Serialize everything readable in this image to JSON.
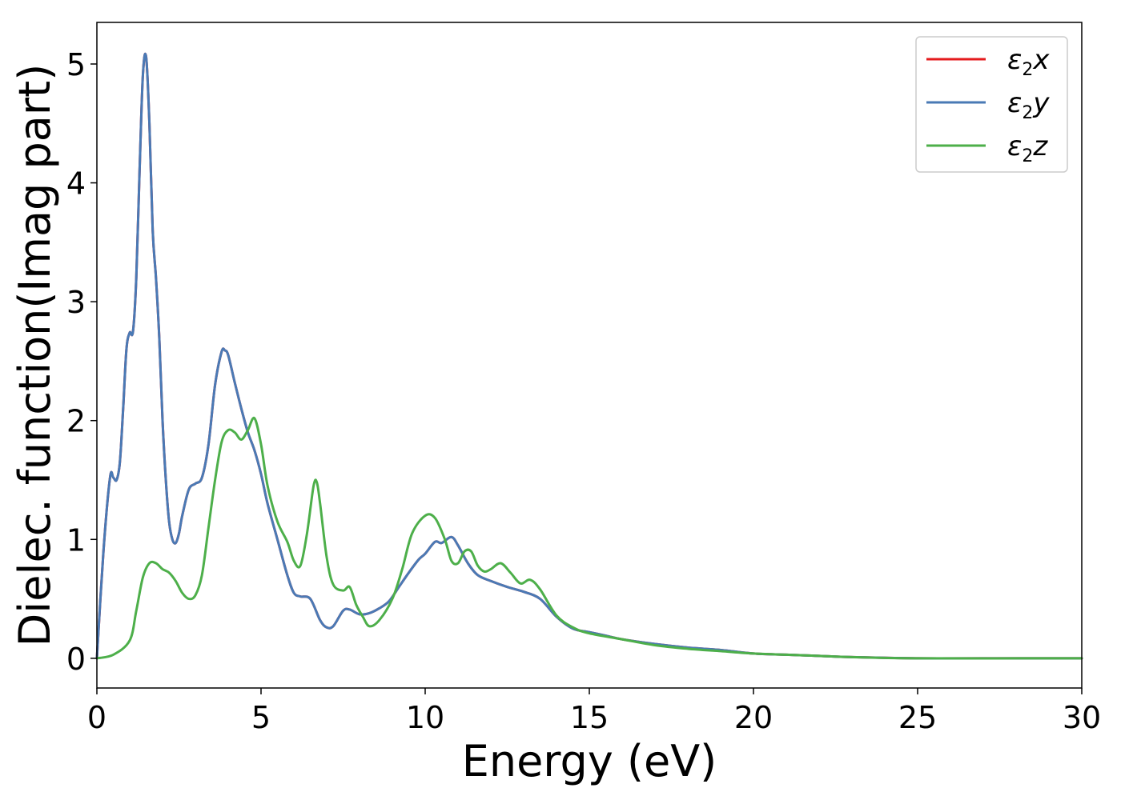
{
  "chart_data": {
    "type": "line",
    "xlabel": "Energy (eV)",
    "ylabel": "Dielec. function(Imag part)",
    "xlim": [
      0,
      30
    ],
    "ylim": [
      -0.25,
      5.35
    ],
    "xticks": [
      0,
      5,
      10,
      15,
      20,
      25,
      30
    ],
    "yticks": [
      0,
      1,
      2,
      3,
      4,
      5
    ],
    "grid": false,
    "legend_position": "top-right",
    "series": [
      {
        "name": "ε2x",
        "legend_main": "ε",
        "legend_sub": "2",
        "legend_tail": "x",
        "color": "#e41a1c",
        "x": [
          0,
          0.2,
          0.4,
          0.5,
          0.6,
          0.7,
          0.8,
          0.9,
          1.0,
          1.1,
          1.2,
          1.3,
          1.4,
          1.5,
          1.6,
          1.7,
          1.8,
          1.9,
          2.0,
          2.1,
          2.2,
          2.3,
          2.4,
          2.5,
          2.6,
          2.8,
          3.0,
          3.2,
          3.4,
          3.6,
          3.8,
          3.9,
          4.0,
          4.2,
          4.4,
          4.6,
          4.8,
          5.0,
          5.2,
          5.5,
          5.8,
          6.0,
          6.2,
          6.5,
          6.8,
          7.0,
          7.2,
          7.5,
          7.7,
          8.0,
          8.3,
          8.6,
          8.9,
          9.2,
          9.5,
          9.8,
          10.0,
          10.3,
          10.5,
          10.8,
          11.0,
          11.3,
          11.6,
          12.0,
          12.5,
          13.0,
          13.5,
          14.0,
          14.5,
          15.0,
          15.5,
          16.0,
          17.0,
          18.0,
          19.0,
          20.0,
          21.0,
          22.0,
          23.0,
          25.0,
          27.0,
          30.0
        ],
        "y": [
          0.0,
          0.9,
          1.52,
          1.52,
          1.5,
          1.65,
          2.1,
          2.6,
          2.74,
          2.75,
          3.2,
          4.1,
          4.9,
          5.06,
          4.5,
          3.6,
          3.2,
          2.7,
          2.0,
          1.5,
          1.15,
          1.0,
          0.97,
          1.05,
          1.2,
          1.42,
          1.47,
          1.52,
          1.8,
          2.3,
          2.58,
          2.59,
          2.55,
          2.32,
          2.1,
          1.9,
          1.75,
          1.55,
          1.3,
          1.0,
          0.7,
          0.55,
          0.52,
          0.5,
          0.32,
          0.26,
          0.27,
          0.4,
          0.41,
          0.37,
          0.38,
          0.42,
          0.48,
          0.6,
          0.72,
          0.83,
          0.88,
          0.98,
          0.97,
          1.02,
          0.95,
          0.8,
          0.7,
          0.65,
          0.6,
          0.56,
          0.5,
          0.35,
          0.25,
          0.22,
          0.19,
          0.16,
          0.12,
          0.09,
          0.07,
          0.04,
          0.03,
          0.02,
          0.01,
          0.0,
          0.0,
          0.0
        ]
      },
      {
        "name": "ε2y",
        "legend_main": "ε",
        "legend_sub": "2",
        "legend_tail": "y",
        "color": "#4a7ab5",
        "x": [
          0,
          0.2,
          0.4,
          0.5,
          0.6,
          0.7,
          0.8,
          0.9,
          1.0,
          1.1,
          1.2,
          1.3,
          1.4,
          1.5,
          1.6,
          1.7,
          1.8,
          1.9,
          2.0,
          2.1,
          2.2,
          2.3,
          2.4,
          2.5,
          2.6,
          2.8,
          3.0,
          3.2,
          3.4,
          3.6,
          3.8,
          3.9,
          4.0,
          4.2,
          4.4,
          4.6,
          4.8,
          5.0,
          5.2,
          5.5,
          5.8,
          6.0,
          6.2,
          6.5,
          6.8,
          7.0,
          7.2,
          7.5,
          7.7,
          8.0,
          8.3,
          8.6,
          8.9,
          9.2,
          9.5,
          9.8,
          10.0,
          10.3,
          10.5,
          10.8,
          11.0,
          11.3,
          11.6,
          12.0,
          12.5,
          13.0,
          13.5,
          14.0,
          14.5,
          15.0,
          15.5,
          16.0,
          17.0,
          18.0,
          19.0,
          20.0,
          21.0,
          22.0,
          23.0,
          25.0,
          27.0,
          30.0
        ],
        "y": [
          0.0,
          0.9,
          1.52,
          1.52,
          1.5,
          1.65,
          2.1,
          2.6,
          2.74,
          2.75,
          3.2,
          4.1,
          4.9,
          5.06,
          4.5,
          3.6,
          3.2,
          2.7,
          2.0,
          1.5,
          1.15,
          1.0,
          0.97,
          1.05,
          1.2,
          1.42,
          1.47,
          1.52,
          1.8,
          2.3,
          2.58,
          2.59,
          2.55,
          2.32,
          2.1,
          1.9,
          1.75,
          1.55,
          1.3,
          1.0,
          0.7,
          0.55,
          0.52,
          0.5,
          0.32,
          0.26,
          0.27,
          0.4,
          0.41,
          0.37,
          0.38,
          0.42,
          0.48,
          0.6,
          0.72,
          0.83,
          0.88,
          0.98,
          0.97,
          1.02,
          0.95,
          0.8,
          0.7,
          0.65,
          0.6,
          0.56,
          0.5,
          0.35,
          0.25,
          0.22,
          0.19,
          0.16,
          0.12,
          0.09,
          0.07,
          0.04,
          0.03,
          0.02,
          0.01,
          0.0,
          0.0,
          0.0
        ]
      },
      {
        "name": "ε2z",
        "legend_main": "ε",
        "legend_sub": "2",
        "legend_tail": "z",
        "color": "#4daf4a",
        "x": [
          0,
          0.5,
          1.0,
          1.2,
          1.4,
          1.6,
          1.8,
          2.0,
          2.2,
          2.4,
          2.6,
          2.8,
          3.0,
          3.2,
          3.4,
          3.6,
          3.8,
          4.0,
          4.2,
          4.4,
          4.6,
          4.8,
          5.0,
          5.2,
          5.5,
          5.8,
          6.0,
          6.2,
          6.4,
          6.6,
          6.7,
          6.8,
          7.0,
          7.2,
          7.5,
          7.7,
          7.9,
          8.1,
          8.3,
          8.6,
          9.0,
          9.3,
          9.6,
          10.0,
          10.3,
          10.6,
          10.8,
          11.0,
          11.2,
          11.4,
          11.6,
          11.8,
          12.0,
          12.3,
          12.6,
          12.9,
          13.2,
          13.5,
          14.0,
          14.5,
          15.0,
          16.0,
          17.0,
          18.0,
          19.0,
          20.0,
          21.0,
          22.0,
          23.0,
          25.0,
          30.0
        ],
        "y": [
          0.0,
          0.03,
          0.15,
          0.4,
          0.68,
          0.8,
          0.8,
          0.75,
          0.72,
          0.65,
          0.55,
          0.5,
          0.53,
          0.7,
          1.1,
          1.5,
          1.82,
          1.92,
          1.9,
          1.84,
          1.92,
          2.02,
          1.8,
          1.45,
          1.15,
          0.98,
          0.82,
          0.78,
          1.05,
          1.45,
          1.48,
          1.3,
          0.85,
          0.62,
          0.57,
          0.6,
          0.45,
          0.35,
          0.27,
          0.32,
          0.5,
          0.75,
          1.05,
          1.2,
          1.18,
          1.0,
          0.82,
          0.8,
          0.9,
          0.9,
          0.78,
          0.73,
          0.75,
          0.8,
          0.72,
          0.63,
          0.66,
          0.58,
          0.36,
          0.26,
          0.21,
          0.16,
          0.11,
          0.08,
          0.06,
          0.04,
          0.03,
          0.02,
          0.01,
          0.0,
          0.0
        ]
      }
    ]
  }
}
